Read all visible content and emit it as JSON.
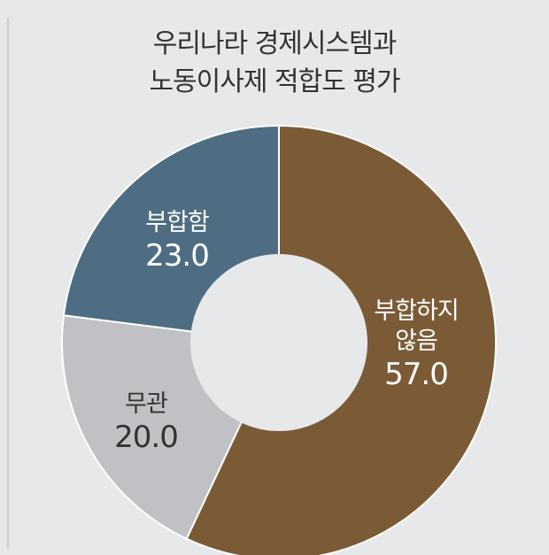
{
  "title_lines": [
    "우리나라 경제시스템과",
    "노동이사제 적합도 평가"
  ],
  "chart_data": {
    "type": "pie",
    "title": "우리나라 경제시스템과 노동이사제 적합도 평가",
    "slices": [
      {
        "label_lines": [
          "부합하지",
          "않음"
        ],
        "value": 57.0,
        "value_text": "57.0",
        "color": "#7b5b36",
        "text_color": "#ffffff"
      },
      {
        "label_lines": [
          "무관"
        ],
        "value": 20.0,
        "value_text": "20.0",
        "color": "#bfc1c4",
        "text_color": "#333333"
      },
      {
        "label_lines": [
          "부합함"
        ],
        "value": 23.0,
        "value_text": "23.0",
        "color": "#4e6d82",
        "text_color": "#ffffff"
      }
    ],
    "donut": true,
    "start_direction": "12 o'clock, clockwise",
    "legend": "none"
  }
}
